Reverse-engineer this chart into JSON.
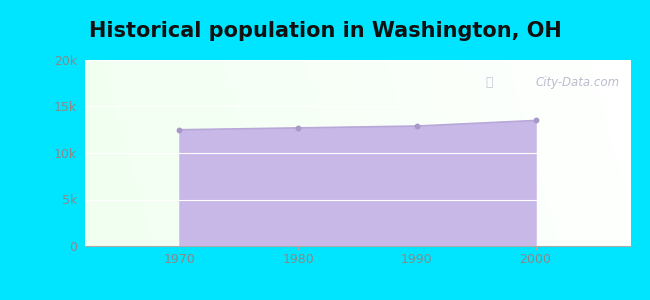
{
  "title": "Historical population in Washington, OH",
  "years": [
    1970,
    1980,
    1990,
    2000
  ],
  "population": [
    12500,
    12700,
    12900,
    13500
  ],
  "ylim": [
    0,
    20000
  ],
  "yticks": [
    0,
    5000,
    10000,
    15000,
    20000
  ],
  "xticks": [
    1970,
    1980,
    1990,
    2000
  ],
  "line_color": "#b8a8d8",
  "fill_color": "#c8b8e8",
  "marker_color": "#a898c8",
  "bg_outer": "#00e5ff",
  "watermark_text": "City-Data.com",
  "title_fontsize": 15,
  "tick_fontsize": 9,
  "grid_color": "#e0ece0",
  "tick_color": "#888888"
}
